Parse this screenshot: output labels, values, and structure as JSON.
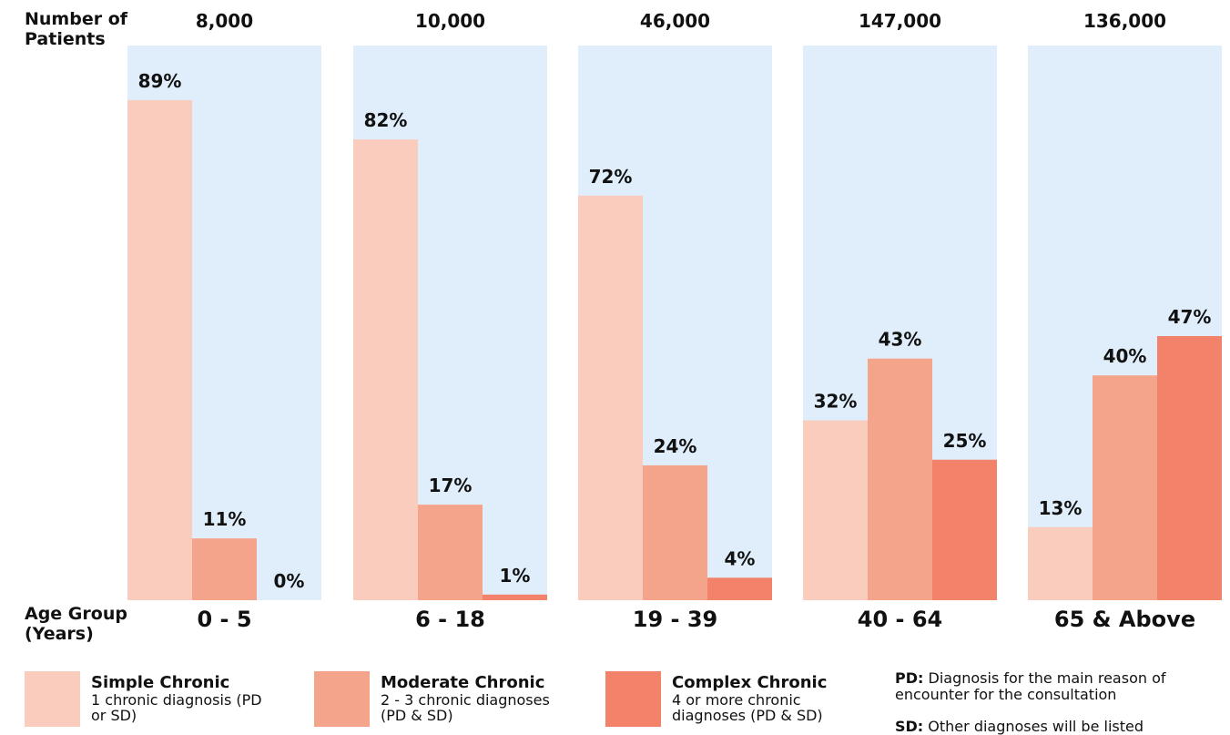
{
  "chart_data": {
    "type": "bar",
    "y_axis_title": "Number of\nPatients",
    "x_axis_title": "Age Group\n(Years)",
    "ylim": [
      0,
      100
    ],
    "categories": [
      "0 - 5",
      "6 - 18",
      "19 - 39",
      "40 - 64",
      "65 & Above"
    ],
    "patients": [
      "8,000",
      "10,000",
      "46,000",
      "147,000",
      "136,000"
    ],
    "series": [
      {
        "name": "Simple Chronic",
        "color": "#f9ccbe",
        "values": [
          89,
          82,
          72,
          32,
          13
        ],
        "labels": [
          "89%",
          "82%",
          "72%",
          "32%",
          "13%"
        ]
      },
      {
        "name": "Moderate Chronic",
        "color": "#f5a48c",
        "values": [
          11,
          17,
          24,
          43,
          40
        ],
        "labels": [
          "11%",
          "17%",
          "24%",
          "43%",
          "40%"
        ]
      },
      {
        "name": "Complex Chronic",
        "color": "#f2826a",
        "values": [
          0,
          1,
          4,
          25,
          47
        ],
        "labels": [
          "0%",
          "1%",
          "4%",
          "25%",
          "47%"
        ]
      }
    ],
    "background_color": "#dfeefa"
  },
  "legend": [
    {
      "name": "Simple Chronic",
      "desc": "1 chronic diagnosis (PD or SD)",
      "color": "#f9ccbe"
    },
    {
      "name": "Moderate Chronic",
      "desc": "2 - 3 chronic diagnoses (PD & SD)",
      "color": "#f5a48c"
    },
    {
      "name": "Complex Chronic",
      "desc": "4 or more chronic diagnoses (PD & SD)",
      "color": "#f2826a"
    }
  ],
  "notes": {
    "pd_term": "PD:",
    "pd_text": "Diagnosis for the main reason of encounter for the consultation",
    "sd_term": "SD:",
    "sd_text": "Other diagnoses will be listed"
  }
}
